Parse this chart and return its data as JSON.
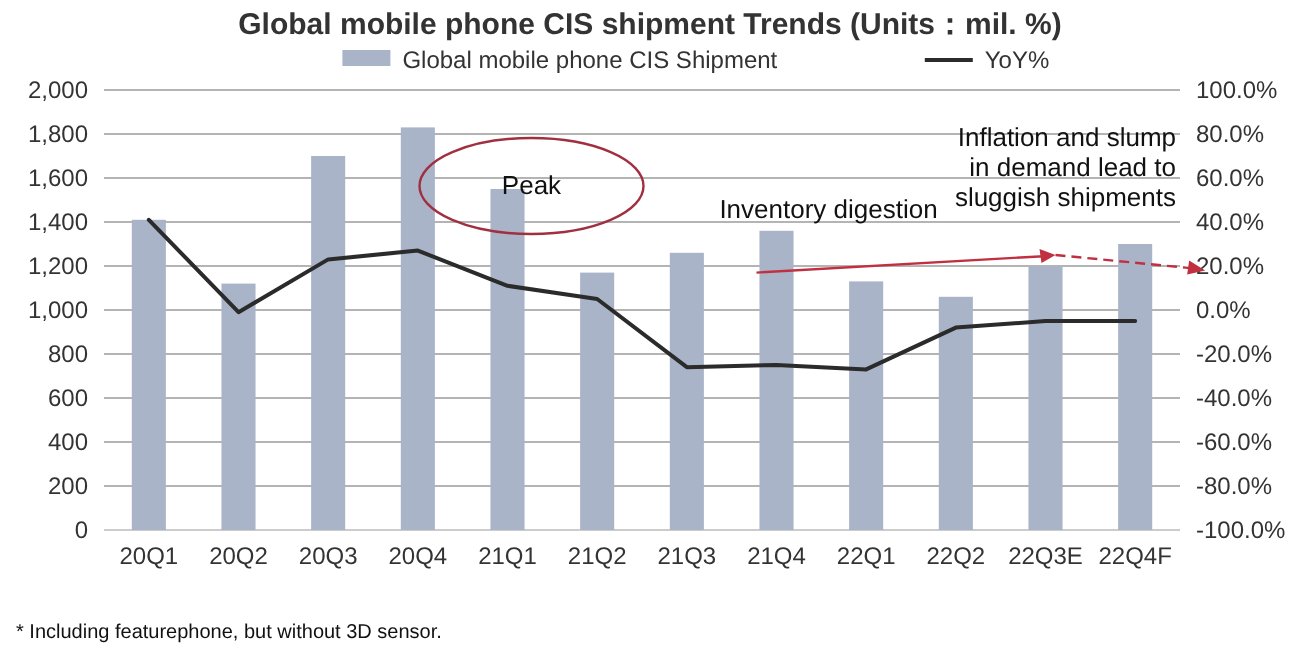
{
  "chart_data": {
    "type": "bar",
    "title": "Global mobile phone CIS shipment Trends (Units：mil. %)",
    "categories": [
      "20Q1",
      "20Q2",
      "20Q3",
      "20Q4",
      "21Q1",
      "21Q2",
      "21Q3",
      "21Q4",
      "22Q1",
      "22Q2",
      "22Q3E",
      "22Q4F"
    ],
    "series": [
      {
        "name": "Global mobile phone CIS Shipment",
        "color": "#aab4c8",
        "values": [
          1410,
          1120,
          1700,
          1830,
          1550,
          1170,
          1260,
          1360,
          1130,
          1060,
          1200,
          1300
        ]
      },
      {
        "name": "YoY%",
        "type": "line",
        "axis": "y2",
        "color": "#2b2b2b",
        "marker": "none",
        "line_style": "solid",
        "values": [
          41,
          -1,
          23,
          27,
          11,
          5,
          -26,
          -25,
          -27,
          -8,
          -5,
          -5
        ]
      }
    ],
    "ylim": [
      0,
      2000
    ],
    "yticks": [
      0,
      200,
      400,
      600,
      800,
      {
        "value": 1000,
        "label": "1,000"
      },
      {
        "value": 1200,
        "label": "1,200"
      },
      {
        "value": 1400,
        "label": "1,400"
      },
      {
        "value": 1600,
        "label": "1,600"
      },
      {
        "value": 1800,
        "label": "1,800"
      },
      {
        "value": 2000,
        "label": "2,000"
      }
    ],
    "y2lim": [
      -100,
      100
    ],
    "y2ticks": [
      {
        "value": -100,
        "label": "-100.0%"
      },
      {
        "value": -80,
        "label": "-80.0%"
      },
      {
        "value": -60,
        "label": "-60.0%"
      },
      {
        "value": -40,
        "label": "-40.0%"
      },
      {
        "value": -20,
        "label": "-20.0%"
      },
      {
        "value": 0,
        "label": "0.0%"
      },
      {
        "value": 20,
        "label": "20.0%"
      },
      {
        "value": 40,
        "label": "40.0%"
      },
      {
        "value": 60,
        "label": "60.0%"
      },
      {
        "value": 80,
        "label": "80.0%"
      },
      {
        "value": 100,
        "label": "100.0%"
      }
    ],
    "grid": "y",
    "legend": "top",
    "annotations": [
      "Peak",
      "Inventory digestion",
      "Inflation and slump\nin demand lead to\nsluggish shipments",
      "* Including featurephone, but without 3D sensor."
    ]
  }
}
